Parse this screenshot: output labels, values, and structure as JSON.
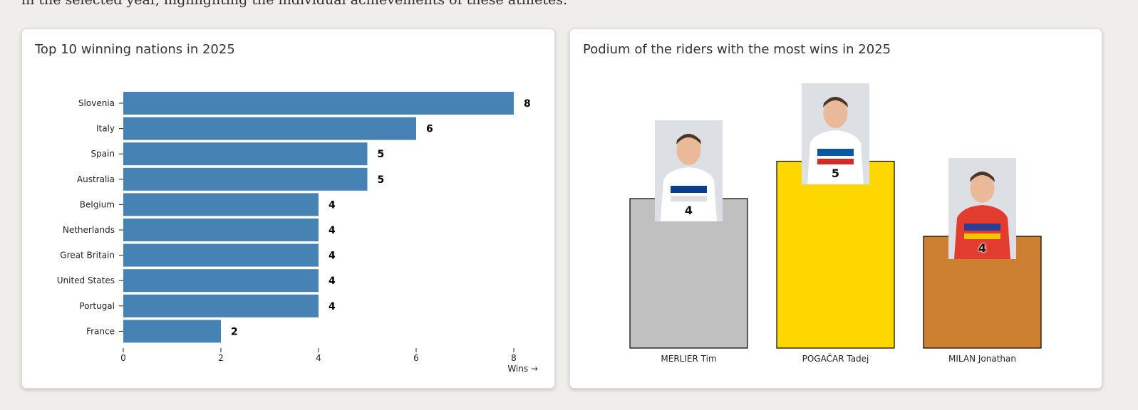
{
  "intro_text": "in the selected year, highlighting the individual achievements of these athletes.",
  "colors": {
    "bar": "#4682b4",
    "gold": "#ffd700",
    "silver": "#c0c0c0",
    "bronze": "#cd7f32"
  },
  "chart_data": [
    {
      "type": "bar",
      "orientation": "horizontal",
      "title": "Top 10 winning nations in 2025",
      "categories": [
        "Slovenia",
        "Italy",
        "Spain",
        "Australia",
        "Belgium",
        "Netherlands",
        "Great Britain",
        "United States",
        "Portugal",
        "France"
      ],
      "values": [
        8,
        6,
        5,
        5,
        4,
        4,
        4,
        4,
        4,
        2
      ],
      "xlabel": "Wins →",
      "xlim": [
        0,
        8
      ],
      "xticks": [
        0,
        2,
        4,
        6,
        8
      ],
      "grid": false,
      "data_labels": true
    },
    {
      "type": "bar",
      "title": "Podium of the riders with the most wins in 2025",
      "categories": [
        "MERLIER Tim",
        "POGAČAR Tadej",
        "MILAN Jonathan"
      ],
      "values": [
        4,
        5,
        4
      ],
      "bar_colors": [
        "silver",
        "gold",
        "bronze"
      ],
      "photos": [
        "rider-photo-merlier",
        "rider-photo-pogacar",
        "rider-photo-milan"
      ],
      "grid": false,
      "data_labels": true
    }
  ]
}
